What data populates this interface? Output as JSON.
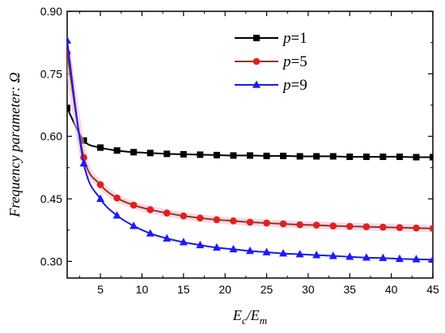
{
  "chart_data": {
    "type": "line",
    "xlabel": {
      "main": "E",
      "sub1": "c",
      "slash": "/E",
      "sub2": "m"
    },
    "ylabel": "Frequency parameter: Ω",
    "xlim": [
      1,
      45
    ],
    "ylim": [
      0.26,
      0.9
    ],
    "xticks": [
      5,
      10,
      15,
      20,
      25,
      30,
      35,
      40,
      45
    ],
    "yticks": [
      0.3,
      0.45,
      0.6,
      0.75,
      0.9
    ],
    "ytick_labels": [
      "0.30",
      "0.45",
      "0.60",
      "0.75",
      "0.90"
    ],
    "legend_position": "top-right",
    "grid": false,
    "series": [
      {
        "name": "p=1",
        "legend_var": "p",
        "legend_rest": "=1",
        "color": "#000000",
        "marker": "square",
        "x": [
          1,
          3,
          5,
          7,
          9,
          11,
          13,
          15,
          17,
          19,
          21,
          23,
          25,
          27,
          29,
          31,
          33,
          35,
          37,
          39,
          41,
          43,
          45
        ],
        "y": [
          0.668,
          0.59,
          0.573,
          0.566,
          0.562,
          0.56,
          0.558,
          0.557,
          0.556,
          0.555,
          0.554,
          0.554,
          0.553,
          0.553,
          0.552,
          0.552,
          0.552,
          0.551,
          0.551,
          0.551,
          0.551,
          0.55,
          0.55
        ]
      },
      {
        "name": "p=5",
        "legend_var": "p",
        "legend_rest": "=5",
        "color": "#e0201b",
        "line_color": "#8b3a1a",
        "marker": "circle",
        "x": [
          1,
          3,
          5,
          7,
          9,
          11,
          13,
          15,
          17,
          19,
          21,
          23,
          25,
          27,
          29,
          31,
          33,
          35,
          37,
          39,
          41,
          43,
          45
        ],
        "y": [
          0.8,
          0.549,
          0.484,
          0.452,
          0.435,
          0.424,
          0.416,
          0.409,
          0.404,
          0.4,
          0.397,
          0.394,
          0.392,
          0.39,
          0.388,
          0.387,
          0.385,
          0.384,
          0.383,
          0.382,
          0.381,
          0.38,
          0.379
        ]
      },
      {
        "name": "p=9",
        "legend_var": "p",
        "legend_rest": "=9",
        "color": "#1a1aff",
        "line_color": "#1a1ae6",
        "marker": "triangle",
        "x": [
          1,
          3,
          5,
          7,
          9,
          11,
          13,
          15,
          17,
          19,
          21,
          23,
          25,
          27,
          29,
          31,
          33,
          35,
          37,
          39,
          41,
          43,
          45
        ],
        "y": [
          0.83,
          0.535,
          0.45,
          0.41,
          0.385,
          0.367,
          0.355,
          0.346,
          0.339,
          0.333,
          0.329,
          0.325,
          0.322,
          0.319,
          0.317,
          0.315,
          0.313,
          0.311,
          0.309,
          0.308,
          0.306,
          0.305,
          0.304
        ]
      }
    ]
  }
}
